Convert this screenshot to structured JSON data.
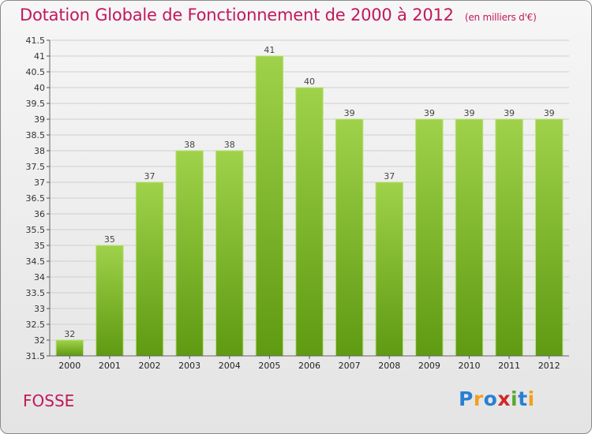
{
  "header": {
    "title": "Dotation Globale de Fonctionnement de 2000 à 2012",
    "subtitle": "(en milliers d'€)"
  },
  "footer": {
    "commune": "FOSSE",
    "logo": "Proxiti"
  },
  "colors": {
    "title": "#c2185b",
    "bar_top": "#9fd24a",
    "bar_bottom": "#5e9a12",
    "grid": "#cfcfcf"
  },
  "chart_data": {
    "type": "bar",
    "title": "Dotation Globale de Fonctionnement de 2000 à 2012",
    "subtitle": "(en milliers d'€)",
    "xlabel": "",
    "ylabel": "",
    "categories": [
      "2000",
      "2001",
      "2002",
      "2003",
      "2004",
      "2005",
      "2006",
      "2007",
      "2008",
      "2009",
      "2010",
      "2011",
      "2012"
    ],
    "values": [
      32,
      35,
      37,
      38,
      38,
      41,
      40,
      39,
      37,
      39,
      39,
      39,
      39
    ],
    "ylim": [
      31.5,
      41.5
    ],
    "ytick_step": 0.5,
    "yticks": [
      "31.5",
      "32",
      "32.5",
      "33",
      "33.5",
      "34",
      "34.5",
      "35",
      "35.5",
      "36",
      "36.5",
      "37",
      "37.5",
      "38",
      "38.5",
      "39",
      "39.5",
      "40",
      "40.5",
      "41",
      "41.5"
    ],
    "grid": true,
    "legend": "none"
  }
}
